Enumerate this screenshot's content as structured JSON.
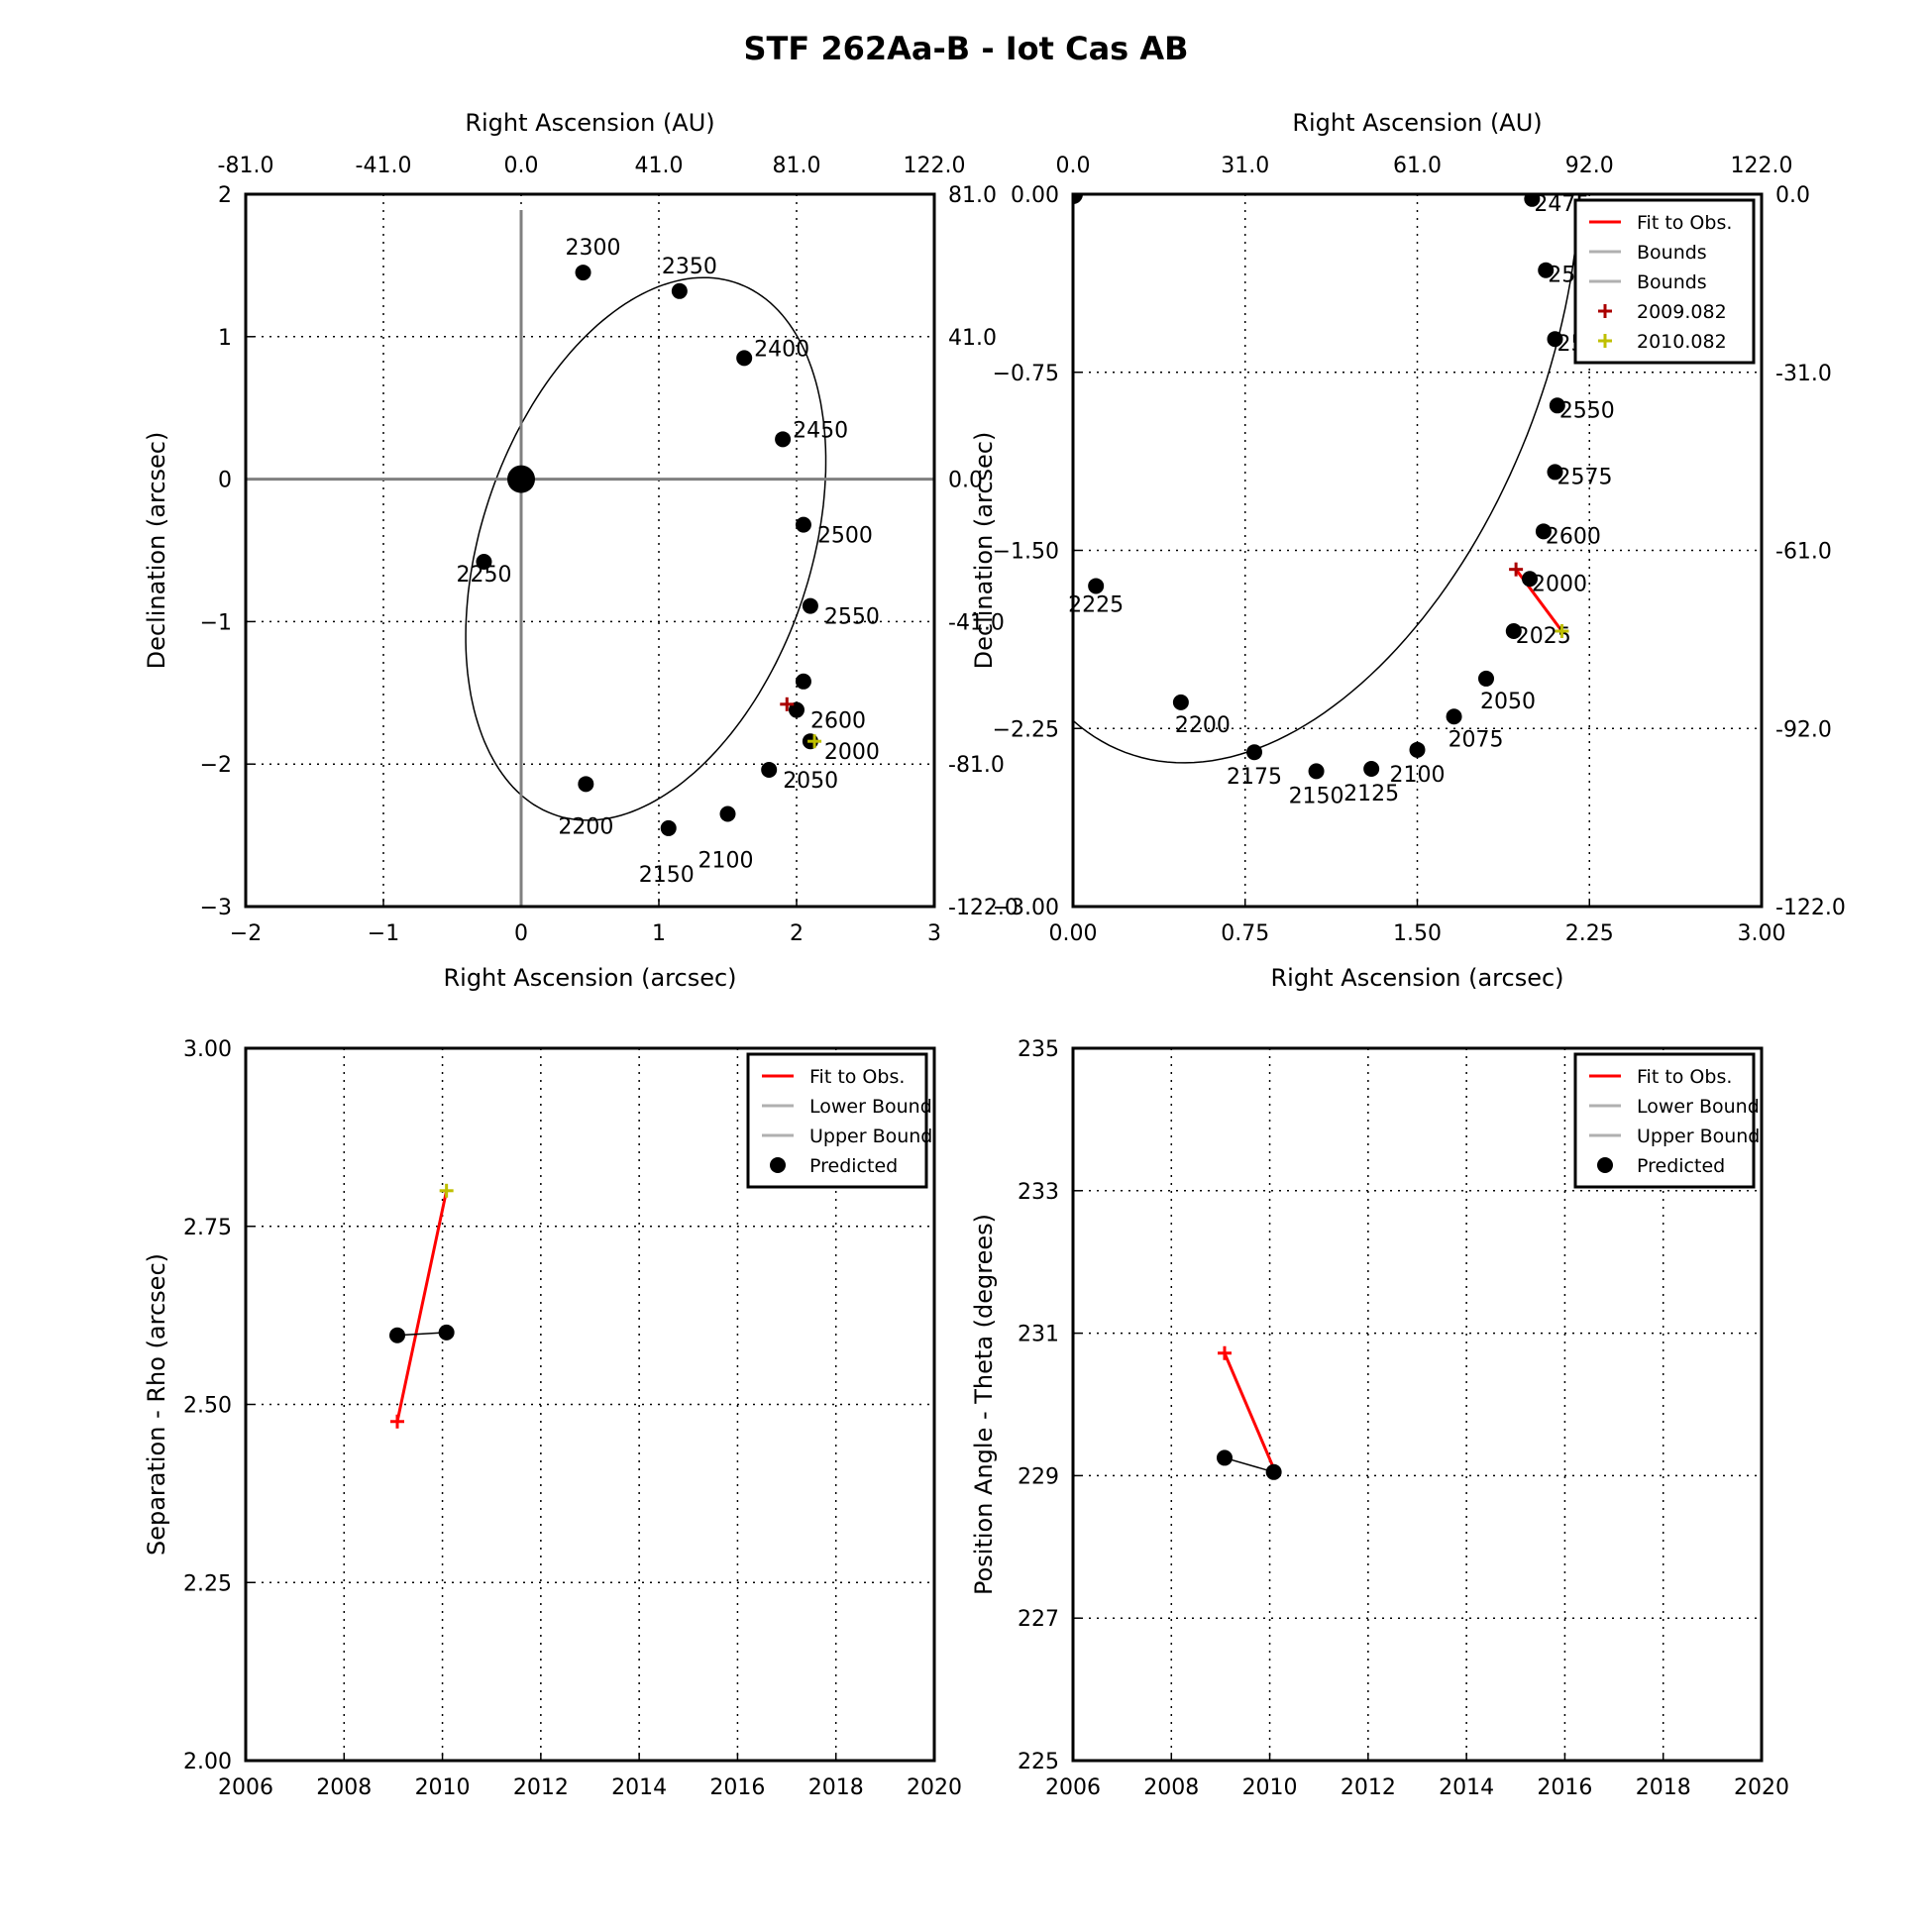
{
  "figure_title": "STF 262Aa-B - Iot Cas AB",
  "colors": {
    "fit": "#ff0000",
    "bounds": "#b0b0b0",
    "obs_2009": "#aa0000",
    "obs_2010": "#bfbf00",
    "orbit": "#000000",
    "axes_lines": "#808080"
  },
  "chart_data": [
    {
      "type": "scatter",
      "panel": "full-orbit",
      "xlabel": "Right Ascension (arcsec)",
      "ylabel": "Declination (arcsec)",
      "top_xlabel": "Right Ascension (AU)",
      "xlim": [
        -2,
        3
      ],
      "ylim": [
        -3,
        2
      ],
      "x_ticks": [
        "−2",
        "−1",
        "0",
        "1",
        "2",
        "3"
      ],
      "y_ticks": [
        "−3",
        "−2",
        "−1",
        "0",
        "1",
        "2"
      ],
      "top_ticks": [
        "-81.0",
        "-41.0",
        "0.0",
        "41.0",
        "81.0",
        "122.0"
      ],
      "right_ticks": [
        "-122.0",
        "-81.0",
        "-41.0",
        "0.0",
        "41.0",
        "81.0"
      ],
      "grid": true,
      "primary_star": [
        0,
        0
      ],
      "epochs": [
        {
          "label": "2300",
          "x": 0.45,
          "y": 1.45
        },
        {
          "label": "2350",
          "x": 1.15,
          "y": 1.32
        },
        {
          "label": "2400",
          "x": 1.62,
          "y": 0.85
        },
        {
          "label": "2450",
          "x": 1.9,
          "y": 0.28
        },
        {
          "label": "2500",
          "x": 2.05,
          "y": -0.32
        },
        {
          "label": "2550",
          "x": 2.1,
          "y": -0.89
        },
        {
          "label": "2600",
          "x": 2.0,
          "y": -1.62
        },
        {
          "label": "2000",
          "x": 2.1,
          "y": -1.84
        },
        {
          "label": "2050",
          "x": 1.8,
          "y": -2.04
        },
        {
          "label": "2100",
          "x": 1.5,
          "y": -2.35
        },
        {
          "label": "2150",
          "x": 1.07,
          "y": -2.45
        },
        {
          "label": "2200",
          "x": 0.47,
          "y": -2.14
        },
        {
          "label": "2250",
          "x": -0.27,
          "y": -0.58
        }
      ],
      "extra_points": [
        {
          "x": 2.05,
          "y": -1.42
        }
      ],
      "observations": [
        {
          "epoch": "2009.082",
          "x": 1.93,
          "y": -1.58
        },
        {
          "epoch": "2010.082",
          "x": 2.13,
          "y": -1.84
        }
      ]
    },
    {
      "type": "scatter",
      "panel": "zoom-orbit",
      "xlabel": "Right Ascension (arcsec)",
      "ylabel": "Declination (arcsec)",
      "top_xlabel": "Right Ascension (AU)",
      "xlim": [
        0,
        3
      ],
      "ylim": [
        -3,
        0
      ],
      "x_ticks": [
        "0.00",
        "0.75",
        "1.50",
        "2.25",
        "3.00"
      ],
      "y_ticks": [
        "−3.00",
        "−2.25",
        "−1.50",
        "−0.75",
        "0.00"
      ],
      "top_ticks": [
        "0.0",
        "31.0",
        "61.0",
        "92.0",
        "122.0"
      ],
      "right_ticks": [
        "-122.0",
        "-92.0",
        "-61.0",
        "-31.0",
        "0.0"
      ],
      "grid": true,
      "legend": [
        "Fit to Obs.",
        "Bounds",
        "Bounds",
        "2009.082",
        "2010.082"
      ],
      "legend_position": "top-right",
      "epochs": [
        {
          "label": "2475",
          "x": 2.0,
          "y": -0.02
        },
        {
          "label": "2500",
          "x": 2.06,
          "y": -0.32
        },
        {
          "label": "2525",
          "x": 2.1,
          "y": -0.61
        },
        {
          "label": "2550",
          "x": 2.11,
          "y": -0.89
        },
        {
          "label": "2575",
          "x": 2.1,
          "y": -1.17
        },
        {
          "label": "2600",
          "x": 2.05,
          "y": -1.42
        },
        {
          "label": "2000",
          "x": 1.99,
          "y": -1.62
        },
        {
          "label": "2025",
          "x": 1.92,
          "y": -1.84
        },
        {
          "label": "2050",
          "x": 1.8,
          "y": -2.04
        },
        {
          "label": "2075",
          "x": 1.66,
          "y": -2.2
        },
        {
          "label": "2100",
          "x": 1.5,
          "y": -2.34
        },
        {
          "label": "2125",
          "x": 1.3,
          "y": -2.42
        },
        {
          "label": "2150",
          "x": 1.06,
          "y": -2.43
        },
        {
          "label": "2175",
          "x": 0.79,
          "y": -2.35
        },
        {
          "label": "2200",
          "x": 0.47,
          "y": -2.14
        },
        {
          "label": "2225",
          "x": 0.1,
          "y": -1.65
        }
      ],
      "observations": [
        {
          "epoch": "2009.082",
          "x": 1.93,
          "y": -1.58
        },
        {
          "epoch": "2010.082",
          "x": 2.13,
          "y": -1.84
        }
      ]
    },
    {
      "type": "line",
      "panel": "separation",
      "ylabel": "Separation - Rho (arcsec)",
      "xlim": [
        2006,
        2020
      ],
      "ylim": [
        2.0,
        3.0
      ],
      "x_ticks": [
        "2006",
        "2008",
        "2010",
        "2012",
        "2014",
        "2016",
        "2018",
        "2020"
      ],
      "y_ticks": [
        "2.00",
        "2.25",
        "2.50",
        "2.75",
        "3.00"
      ],
      "grid": true,
      "legend": [
        "Fit to Obs.",
        "Lower Bound",
        "Upper Bound",
        "Predicted"
      ],
      "legend_position": "top-right",
      "predicted": [
        {
          "x": 2009.082,
          "y": 2.597
        },
        {
          "x": 2010.082,
          "y": 2.601
        }
      ],
      "observations": [
        {
          "x": 2009.082,
          "y": 2.476
        },
        {
          "x": 2010.082,
          "y": 2.8
        }
      ]
    },
    {
      "type": "line",
      "panel": "position-angle",
      "ylabel": "Position Angle - Theta (degrees)",
      "xlim": [
        2006,
        2020
      ],
      "ylim": [
        225,
        235
      ],
      "x_ticks": [
        "2006",
        "2008",
        "2010",
        "2012",
        "2014",
        "2016",
        "2018",
        "2020"
      ],
      "y_ticks": [
        "225",
        "227",
        "229",
        "231",
        "233",
        "235"
      ],
      "grid": true,
      "legend": [
        "Fit to Obs.",
        "Lower Bound",
        "Upper Bound",
        "Predicted"
      ],
      "legend_position": "top-right",
      "predicted": [
        {
          "x": 2009.082,
          "y": 229.25
        },
        {
          "x": 2010.082,
          "y": 229.05
        }
      ],
      "observations": [
        {
          "x": 2009.082,
          "y": 230.72
        },
        {
          "x": 2010.082,
          "y": 229.1
        }
      ]
    }
  ]
}
